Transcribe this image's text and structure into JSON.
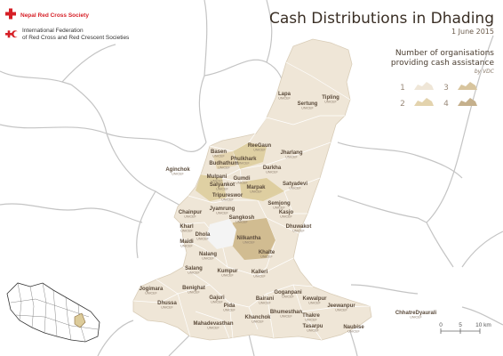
{
  "header": {
    "title": "Cash Distributions in Dhading",
    "date": "1 June 2015"
  },
  "logos": {
    "nrcs": "Nepal Red Cross Society",
    "ifrc_line1": "International Federation",
    "ifrc_line2": "of Red Cross and Red Crescent Societies"
  },
  "legend": {
    "title_line1": "Number of organisations",
    "title_line2": "providing cash assistance",
    "subtitle": "by VDC",
    "classes": [
      {
        "label": "1",
        "color": "#efe6d7"
      },
      {
        "label": "2",
        "color": "#e3d3ad"
      },
      {
        "label": "3",
        "color": "#d8c59e"
      },
      {
        "label": "4",
        "color": "#c5b08c"
      }
    ]
  },
  "scale": {
    "labels": [
      "0",
      "5",
      "10 km"
    ]
  },
  "colors": {
    "district_fill": "#efe6d7",
    "district_stroke": "#ffffff",
    "highlight_fill": "#dccb9a",
    "highlight_strong": "#cdb78a",
    "city_fill": "#f4f4f4",
    "border": "#c4c4c4",
    "red": "#d61f26"
  },
  "vdcs": [
    {
      "name": "Lapa",
      "org": "UNICEF"
    },
    {
      "name": "Tipling",
      "org": "UNICEF"
    },
    {
      "name": "Sertung",
      "org": "UNICEF"
    },
    {
      "name": "Basen",
      "org": "UNICEF"
    },
    {
      "name": "ReeGaun",
      "org": "UNICEF"
    },
    {
      "name": "Phulkhark",
      "org": "UNICEF"
    },
    {
      "name": "Budhathum",
      "org": "UNICEF"
    },
    {
      "name": "Jharlang",
      "org": "UNICEF"
    },
    {
      "name": "Darkha",
      "org": "UNICEF"
    },
    {
      "name": "Aginchok",
      "org": "UNICEF"
    },
    {
      "name": "Mulpani",
      "org": "UNICEF"
    },
    {
      "name": "Gumdi",
      "org": "UNICEF"
    },
    {
      "name": "Salyankot",
      "org": "UNICEF"
    },
    {
      "name": "Marpak",
      "org": "UNICEF"
    },
    {
      "name": "Satyadevi",
      "org": "UNICEF"
    },
    {
      "name": "Tripureswor",
      "org": "UNICEF"
    },
    {
      "name": "Semjong",
      "org": "UNICEF"
    },
    {
      "name": "Chainpur",
      "org": "UNICEF"
    },
    {
      "name": "Jyamrung",
      "org": "UNICEF"
    },
    {
      "name": "Kasjo",
      "org": "UNICEF"
    },
    {
      "name": "Sangkosh",
      "org": "UNICEF"
    },
    {
      "name": "Kharl",
      "org": "UNICEF"
    },
    {
      "name": "Dhuwakot",
      "org": "UNICEF"
    },
    {
      "name": "Dhola",
      "org": "UNICEF"
    },
    {
      "name": "Nilkantha",
      "org": "UNICEF"
    },
    {
      "name": "Maidi",
      "org": "UNICEF"
    },
    {
      "name": "Khalte",
      "org": "UNICEF"
    },
    {
      "name": "Nalang",
      "org": "UNICEF"
    },
    {
      "name": "Salang",
      "org": "UNICEF"
    },
    {
      "name": "Kumpur",
      "org": "UNICEF"
    },
    {
      "name": "Kalleri",
      "org": "UNICEF"
    },
    {
      "name": "Benighat",
      "org": "UNICEF"
    },
    {
      "name": "Jogimara",
      "org": "UNICEF"
    },
    {
      "name": "Gajuri",
      "org": "UNICEF"
    },
    {
      "name": "Goganpani",
      "org": "UNICEF"
    },
    {
      "name": "Bairani",
      "org": "UNICEF"
    },
    {
      "name": "Kewalpur",
      "org": "UNICEF"
    },
    {
      "name": "Dhussa",
      "org": "UNICEF"
    },
    {
      "name": "Pida",
      "org": "UNICEF"
    },
    {
      "name": "Jeewanpur",
      "org": "UNICEF"
    },
    {
      "name": "Bhumesthan",
      "org": "UNICEF"
    },
    {
      "name": "Khanchok",
      "org": "UNICEF"
    },
    {
      "name": "Thakre",
      "org": "UNICEF"
    },
    {
      "name": "Mahadevasthan",
      "org": "UNICEF"
    },
    {
      "name": "Tasarpu",
      "org": "UNICEF"
    },
    {
      "name": "ChhatreDyaurali",
      "org": "UNICEF"
    },
    {
      "name": "Naubise",
      "org": "UNICEF"
    }
  ]
}
